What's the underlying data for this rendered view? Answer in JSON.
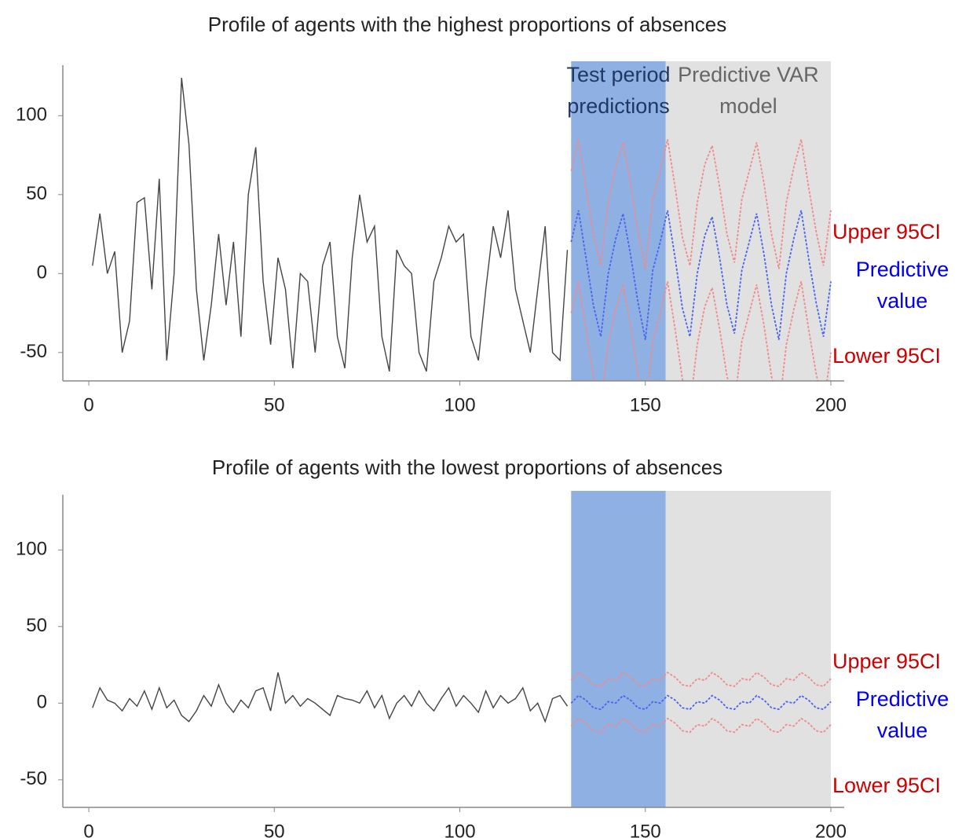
{
  "chart_data": [
    {
      "type": "line",
      "title": "Profile of agents with the highest proportions of absences",
      "xlim": [
        -7,
        203.6
      ],
      "ylim": [
        -68,
        132
      ],
      "xticks": [
        0,
        50,
        100,
        150,
        200
      ],
      "yticks": [
        -50,
        0,
        50,
        100
      ],
      "regions": [
        {
          "label": "Test period predictions",
          "start": 130,
          "end": 155.5,
          "color": "#8fb0e2",
          "label_color": "#1f3864"
        },
        {
          "label": "Predictive VAR model",
          "start": 155.5,
          "end": 200,
          "color": "#e1e1e1",
          "label_color": "#666666"
        }
      ],
      "series": [
        {
          "color": "#444444",
          "x": [
            1,
            3,
            5,
            7,
            9,
            11,
            13,
            15,
            17,
            19,
            21,
            23,
            25,
            27,
            29,
            31,
            33,
            35,
            37,
            39,
            41,
            43,
            45,
            47,
            49,
            51,
            53,
            55,
            57,
            59,
            61,
            63,
            65,
            67,
            69,
            71,
            73,
            75,
            77,
            79,
            81,
            83,
            85,
            87,
            89,
            91,
            93,
            95,
            97,
            99,
            101,
            103,
            105,
            107,
            109,
            111,
            113,
            115,
            117,
            119,
            121,
            123,
            125,
            127,
            129
          ],
          "values": [
            5,
            38,
            0,
            14,
            -50,
            -30,
            45,
            48,
            -10,
            60,
            -55,
            0,
            124,
            82,
            -10,
            -55,
            -20,
            25,
            -20,
            20,
            -40,
            50,
            80,
            -5,
            -45,
            10,
            -10,
            -60,
            0,
            -5,
            -50,
            5,
            20,
            -40,
            -60,
            10,
            50,
            20,
            30,
            -40,
            -62,
            15,
            5,
            0,
            -50,
            -62,
            -5,
            10,
            30,
            20,
            25,
            -40,
            -55,
            -10,
            30,
            10,
            40,
            -10,
            -30,
            -50,
            -10,
            30,
            -50,
            -55,
            15
          ]
        },
        {
          "name": "Upper 95CI",
          "color": "#f08a8a",
          "label_color": "#cc0000",
          "x": [
            130,
            132,
            134,
            136,
            138,
            140,
            142,
            144,
            146,
            148,
            150,
            152,
            154,
            156,
            158,
            160,
            162,
            164,
            166,
            168,
            170,
            172,
            174,
            176,
            178,
            180,
            182,
            184,
            186,
            188,
            190,
            192,
            194,
            196,
            198,
            200
          ],
          "values": [
            65,
            85,
            55,
            25,
            5,
            45,
            67,
            83,
            57,
            27,
            3,
            47,
            65,
            85,
            55,
            23,
            5,
            45,
            69,
            81,
            55,
            25,
            7,
            47,
            65,
            83,
            57,
            25,
            3,
            45,
            67,
            85,
            55,
            27,
            5,
            40
          ]
        },
        {
          "name": "Predictive value",
          "color": "#4a62f0",
          "label_color": "#0000ee",
          "x": [
            130,
            132,
            134,
            136,
            138,
            140,
            142,
            144,
            146,
            148,
            150,
            152,
            154,
            156,
            158,
            160,
            162,
            164,
            166,
            168,
            170,
            172,
            174,
            176,
            178,
            180,
            182,
            184,
            186,
            188,
            190,
            192,
            194,
            196,
            198,
            200
          ],
          "values": [
            20,
            40,
            10,
            -20,
            -40,
            0,
            22,
            38,
            12,
            -18,
            -42,
            2,
            20,
            40,
            10,
            -22,
            -40,
            0,
            24,
            36,
            10,
            -20,
            -38,
            2,
            20,
            38,
            12,
            -20,
            -42,
            0,
            22,
            40,
            10,
            -18,
            -40,
            -5
          ]
        },
        {
          "name": "Lower 95CI",
          "color": "#f08a8a",
          "label_color": "#cc0000",
          "x": [
            130,
            132,
            134,
            136,
            138,
            140,
            142,
            144,
            146,
            148,
            150,
            152,
            154,
            156,
            158,
            160,
            162,
            164,
            166,
            168,
            170,
            172,
            174,
            176,
            178,
            180,
            182,
            184,
            186,
            188,
            190,
            192,
            194,
            196,
            198,
            200
          ],
          "values": [
            -25,
            -5,
            -35,
            -65,
            -85,
            -45,
            -23,
            -7,
            -33,
            -63,
            -87,
            -43,
            -25,
            -5,
            -35,
            -67,
            -85,
            -45,
            -21,
            -9,
            -35,
            -65,
            -83,
            -43,
            -25,
            -7,
            -33,
            -65,
            -87,
            -45,
            -23,
            -5,
            -35,
            -63,
            -85,
            -50
          ]
        }
      ]
    },
    {
      "type": "line",
      "title": "Profile of agents with the lowest proportions of absences",
      "xlim": [
        -7,
        203.6
      ],
      "ylim": [
        -68,
        136
      ],
      "xticks": [
        0,
        50,
        100,
        150,
        200
      ],
      "yticks": [
        -50,
        0,
        50,
        100
      ],
      "regions": [
        {
          "start": 130,
          "end": 155.5,
          "color": "#8fb0e2"
        },
        {
          "start": 155.5,
          "end": 200,
          "color": "#e1e1e1"
        }
      ],
      "series": [
        {
          "color": "#444444",
          "x": [
            1,
            3,
            5,
            7,
            9,
            11,
            13,
            15,
            17,
            19,
            21,
            23,
            25,
            27,
            29,
            31,
            33,
            35,
            37,
            39,
            41,
            43,
            45,
            47,
            49,
            51,
            53,
            55,
            57,
            59,
            61,
            63,
            65,
            67,
            69,
            71,
            73,
            75,
            77,
            79,
            81,
            83,
            85,
            87,
            89,
            91,
            93,
            95,
            97,
            99,
            101,
            103,
            105,
            107,
            109,
            111,
            113,
            115,
            117,
            119,
            121,
            123,
            125,
            127,
            129
          ],
          "values": [
            -3,
            10,
            2,
            0,
            -5,
            3,
            -2,
            8,
            -4,
            10,
            -3,
            2,
            -8,
            -12,
            -5,
            5,
            -2,
            12,
            0,
            -6,
            2,
            -3,
            8,
            10,
            -5,
            20,
            0,
            5,
            -2,
            3,
            0,
            -4,
            -8,
            5,
            3,
            2,
            0,
            8,
            -3,
            5,
            -10,
            0,
            5,
            -2,
            8,
            0,
            -5,
            3,
            10,
            -2,
            5,
            0,
            -6,
            8,
            -3,
            5,
            0,
            3,
            10,
            -5,
            0,
            -12,
            3,
            5,
            -2
          ]
        },
        {
          "name": "Upper 95CI",
          "color": "#f08a8a",
          "label_color": "#cc0000",
          "x": [
            130,
            132,
            134,
            136,
            138,
            140,
            142,
            144,
            146,
            148,
            150,
            152,
            154,
            156,
            158,
            160,
            162,
            164,
            166,
            168,
            170,
            172,
            174,
            176,
            178,
            180,
            182,
            184,
            186,
            188,
            190,
            192,
            194,
            196,
            198,
            200
          ],
          "values": [
            15,
            20,
            17,
            12,
            11,
            16,
            15,
            20,
            17,
            12,
            11,
            16,
            15,
            20,
            17,
            12,
            11,
            16,
            15,
            20,
            17,
            12,
            11,
            16,
            15,
            20,
            17,
            12,
            11,
            16,
            15,
            20,
            17,
            12,
            11,
            16
          ]
        },
        {
          "name": "Predictive value",
          "color": "#4a62f0",
          "label_color": "#0000ee",
          "x": [
            130,
            132,
            134,
            136,
            138,
            140,
            142,
            144,
            146,
            148,
            150,
            152,
            154,
            156,
            158,
            160,
            162,
            164,
            166,
            168,
            170,
            172,
            174,
            176,
            178,
            180,
            182,
            184,
            186,
            188,
            190,
            192,
            194,
            196,
            198,
            200
          ],
          "values": [
            0,
            5,
            2,
            -3,
            -4,
            1,
            0,
            5,
            2,
            -3,
            -4,
            1,
            0,
            5,
            2,
            -3,
            -4,
            1,
            0,
            5,
            2,
            -3,
            -4,
            1,
            0,
            5,
            2,
            -3,
            -4,
            1,
            0,
            5,
            2,
            -3,
            -4,
            1
          ]
        },
        {
          "name": "Lower 95CI",
          "color": "#f08a8a",
          "label_color": "#cc0000",
          "x": [
            130,
            132,
            134,
            136,
            138,
            140,
            142,
            144,
            146,
            148,
            150,
            152,
            154,
            156,
            158,
            160,
            162,
            164,
            166,
            168,
            170,
            172,
            174,
            176,
            178,
            180,
            182,
            184,
            186,
            188,
            190,
            192,
            194,
            196,
            198,
            200
          ],
          "values": [
            -15,
            -10,
            -13,
            -18,
            -19,
            -14,
            -15,
            -10,
            -13,
            -18,
            -19,
            -14,
            -15,
            -10,
            -13,
            -18,
            -19,
            -14,
            -15,
            -10,
            -13,
            -18,
            -19,
            -14,
            -15,
            -10,
            -13,
            -18,
            -19,
            -14,
            -15,
            -10,
            -13,
            -18,
            -19,
            -14
          ]
        }
      ]
    }
  ]
}
